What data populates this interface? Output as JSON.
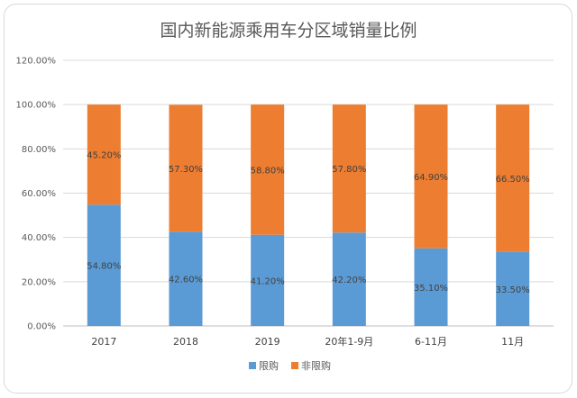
{
  "chart_data": {
    "type": "bar",
    "stacked": true,
    "title": "国内新能源乘用车分区域销量比例",
    "categories": [
      "2017",
      "2018",
      "2019",
      "20年1-9月",
      "6-11月",
      "11月"
    ],
    "series": [
      {
        "name": "限购",
        "values": [
          54.8,
          42.6,
          41.2,
          42.2,
          35.1,
          33.5
        ],
        "labels": [
          "54.80%",
          "42.60%",
          "41.20%",
          "42.20%",
          "35.10%",
          "33.50%"
        ],
        "color": "#5b9bd5"
      },
      {
        "name": "非限购",
        "values": [
          45.2,
          57.3,
          58.8,
          57.8,
          64.9,
          66.5
        ],
        "labels": [
          "45.20%",
          "57.30%",
          "58.80%",
          "57.80%",
          "64.90%",
          "66.50%"
        ],
        "color": "#ed7d31"
      }
    ],
    "yticks": [
      "0.00%",
      "20.00%",
      "40.00%",
      "60.00%",
      "80.00%",
      "100.00%",
      "120.00%"
    ],
    "ylim": [
      0,
      120
    ],
    "grid": true,
    "legend_position": "bottom"
  }
}
